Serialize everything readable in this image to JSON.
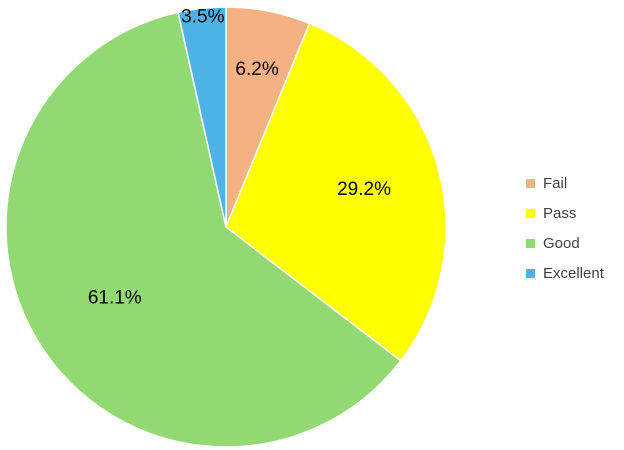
{
  "chart_data": {
    "type": "pie",
    "title": "",
    "categories": [
      "Fail",
      "Pass",
      "Good",
      "Excellent"
    ],
    "values": [
      6.2,
      29.2,
      61.1,
      3.5
    ],
    "data_labels": [
      "6.2%",
      "29.2%",
      "61.1%",
      "3.5%"
    ],
    "colors": [
      "#f4b183",
      "#ffff00",
      "#92d873",
      "#4db3e6"
    ],
    "start_angle_deg": 0,
    "direction": "clockwise",
    "slice_border_color": "#ffffff",
    "legend_position": "right"
  },
  "legend": {
    "items": [
      {
        "label": "Fail",
        "color": "#f4b183"
      },
      {
        "label": "Pass",
        "color": "#ffff00"
      },
      {
        "label": "Good",
        "color": "#92d873"
      },
      {
        "label": "Excellent",
        "color": "#4db3e6"
      }
    ]
  }
}
